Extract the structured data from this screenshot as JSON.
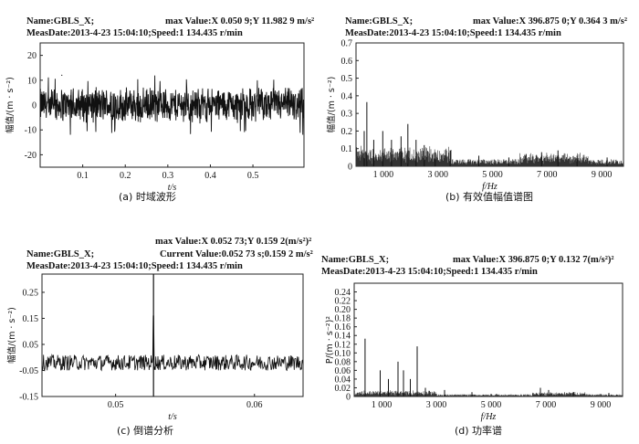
{
  "chart_data": [
    {
      "type": "line",
      "id": "a",
      "caption": "(a) 时域波形",
      "header_left": "Name:GBLS_X;",
      "header_right": "max Value:X 0.050 9;Y 11.982 9 m/s²",
      "header_line2": "MeasDate:2013-4-23 15:04:10;Speed:1 134.435 r/min",
      "xlabel": "t/s",
      "ylabel": "幅值/(m · s⁻²)",
      "xlim": [
        0.0,
        0.62
      ],
      "ylim": [
        -25,
        25
      ],
      "xticks": [
        0.1,
        0.2,
        0.3,
        0.4,
        0.5
      ],
      "xtick_labels": [
        "0.1",
        "0.2",
        "0.3",
        "0.4",
        "0.5"
      ],
      "yticks": [
        20,
        10,
        0,
        -10,
        -20
      ],
      "ytick_labels": [
        "20",
        "10",
        "0",
        "-10",
        "-20"
      ],
      "signal": {
        "kind": "noise",
        "amplitude": 7,
        "peak": 12,
        "samples": 900
      },
      "max_point": {
        "x": 0.0509,
        "y": 11.9829
      }
    },
    {
      "type": "line",
      "id": "b",
      "caption": "(b) 有效值幅值谱图",
      "header_left": "Name:GBLS_X;",
      "header_right": "max Value:X 396.875 0;Y 0.364 3 m/s²",
      "header_line2": "MeasDate:2013-4-23 15:04:10;Speed:1 134.435 r/min",
      "xlabel": "f/Hz",
      "ylabel": "幅值/(m · s⁻²)",
      "xlim": [
        0,
        9800
      ],
      "ylim": [
        0,
        0.7
      ],
      "xticks": [
        1000,
        3000,
        5000,
        7000,
        9000
      ],
      "xtick_labels": [
        "1 000",
        "3 000",
        "5 000",
        "7 000",
        "9 000"
      ],
      "yticks": [
        0,
        0.1,
        0.2,
        0.3,
        0.4,
        0.5,
        0.6,
        0.7
      ],
      "ytick_labels": [
        "0",
        "0.1",
        "0.2",
        "0.3",
        "0.4",
        "0.5",
        "0.6",
        "0.7"
      ],
      "peaks": [
        {
          "x": 396.875,
          "y": 0.3643
        },
        {
          "x": 300,
          "y": 0.2
        },
        {
          "x": 650,
          "y": 0.15
        },
        {
          "x": 980,
          "y": 0.2
        },
        {
          "x": 1300,
          "y": 0.15
        },
        {
          "x": 1650,
          "y": 0.17
        },
        {
          "x": 1900,
          "y": 0.24
        },
        {
          "x": 2200,
          "y": 0.15
        },
        {
          "x": 2500,
          "y": 0.12
        },
        {
          "x": 2900,
          "y": 0.08
        },
        {
          "x": 3450,
          "y": 0.09
        },
        {
          "x": 4500,
          "y": 0.06
        },
        {
          "x": 5600,
          "y": 0.05
        },
        {
          "x": 6800,
          "y": 0.08
        },
        {
          "x": 7400,
          "y": 0.09
        },
        {
          "x": 8100,
          "y": 0.06
        },
        {
          "x": 9200,
          "y": 0.05
        }
      ]
    },
    {
      "type": "line",
      "id": "c",
      "caption": "(c) 倒谱分析",
      "header_left": "Name:GBLS_X;",
      "header_right": "max Value:X 0.052 73;Y 0.159 2(m/s²)²",
      "header_right2": "Current Value:0.052 73 s;0.159 2 m/s²",
      "header_line2": "MeasDate:2013-4-23 15:04:10;Speed:1 134.435 r/min",
      "xlabel": "t/s",
      "ylabel": "幅值/(m · s⁻²)",
      "xlim": [
        0.0447,
        0.0635
      ],
      "ylim": [
        -0.15,
        0.32
      ],
      "xticks": [
        0.05,
        0.06
      ],
      "xtick_labels": [
        "0.05",
        "0.06"
      ],
      "yticks": [
        0.25,
        0.15,
        0.05,
        -0.05,
        -0.15
      ],
      "ytick_labels": [
        "0.25",
        "0.15",
        "0.05",
        "-0.05",
        "-0.15"
      ],
      "cursor_x": 0.05273,
      "max_point": {
        "x": 0.05273,
        "y": 0.1592
      },
      "signal": {
        "kind": "noise",
        "center": -0.02,
        "amplitude": 0.03,
        "samples": 500
      }
    },
    {
      "type": "line",
      "id": "d",
      "caption": "(d) 功率谱",
      "header_left": "Name:GBLS_X;",
      "header_right": "max Value:X 396.875 0;Y 0.132 7(m/s²)²",
      "header_line2": "MeasDate:2013-4-23 15:04:10;Speed:1 134.435 r/min",
      "xlabel": "f/Hz",
      "ylabel": "P/(m · s⁻²)²",
      "xlim": [
        0,
        9800
      ],
      "ylim": [
        0,
        0.26
      ],
      "xticks": [
        1000,
        3000,
        5000,
        7000,
        9000
      ],
      "xtick_labels": [
        "1 000",
        "3 000",
        "5 000",
        "7 000",
        "9 000"
      ],
      "yticks": [
        0,
        0.02,
        0.04,
        0.06,
        0.08,
        0.1,
        0.12,
        0.14,
        0.16,
        0.18,
        0.2,
        0.22,
        0.24
      ],
      "ytick_labels": [
        "0",
        "0.02",
        "0.04",
        "0.06",
        "0.08",
        "0.10",
        "0.12",
        "0.14",
        "0.16",
        "0.18",
        "0.20",
        "0.22",
        "0.24"
      ],
      "peaks": [
        {
          "x": 396.875,
          "y": 0.1327
        },
        {
          "x": 950,
          "y": 0.06
        },
        {
          "x": 1250,
          "y": 0.04
        },
        {
          "x": 1600,
          "y": 0.08
        },
        {
          "x": 1800,
          "y": 0.06
        },
        {
          "x": 2050,
          "y": 0.04
        },
        {
          "x": 2300,
          "y": 0.115
        },
        {
          "x": 2600,
          "y": 0.02
        },
        {
          "x": 3300,
          "y": 0.015
        },
        {
          "x": 4300,
          "y": 0.01
        },
        {
          "x": 5200,
          "y": 0.006
        },
        {
          "x": 6800,
          "y": 0.02
        },
        {
          "x": 7100,
          "y": 0.015
        },
        {
          "x": 8000,
          "y": 0.01
        },
        {
          "x": 9300,
          "y": 0.008
        }
      ]
    }
  ]
}
